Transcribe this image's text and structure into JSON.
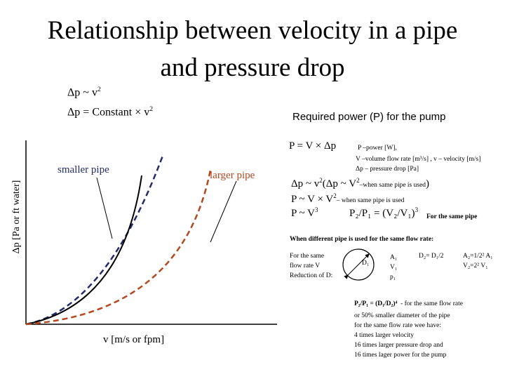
{
  "title": {
    "line1": "Relationship between velocity in a pipe",
    "line2": "and pressure drop"
  },
  "formulas": {
    "prop": "Δp ~ v",
    "prop_exp": "2",
    "const": "Δp = Constant × v",
    "const_exp": "2"
  },
  "power": {
    "heading": "Required power (P) for the pump",
    "eq": "P = V × Δp",
    "def_p": "P –power [W],",
    "def_v": "V –volume flow rate [m³/s] ,   v – velocity [m/s]",
    "def_dp": "Δp – pressure drop [Pa]",
    "rel1_main": "Δp ~ v",
    "rel1_exp": "2",
    "rel1_paren": "(Δp ~ V",
    "rel1_paren_exp": "2",
    "rel1_note": "–when same pipe is used",
    "rel1_close": ")",
    "rel2_main": "P ~ V × V",
    "rel2_exp": "2",
    "rel2_note": "– when same pipe is used",
    "rel3_main": "P ~ V",
    "rel3_exp": "3",
    "rel3_ratio": "P₂/P₁ = (V₂/V₁)",
    "rel3_ratio_exp": "3",
    "rel3_note": "For the same pipe"
  },
  "different_pipe": {
    "heading": "When different pipe is used for the same flow rate:",
    "left1": "For the same",
    "left2": "flow rate V",
    "left3": "Reduction of D:",
    "circle_label": "D₁",
    "a1": "A₁",
    "v1": "V₁",
    "p1": "p₁",
    "d2": "D₂= D₁/2",
    "a2": "A₂=1/2² A₁",
    "v2": "V₂=2² V₁",
    "ratio": "P₂/P₁ = (D₁/D₂)⁴",
    "ratio_note": "- for the same flow rate",
    "notes": [
      "or 50% smaller diameter of the pipe",
      "for the same flow rate wee have:",
      "4 times larger velocity",
      "16 times larger pressure drop and",
      "16 times lager power for the pump"
    ]
  },
  "chart": {
    "ylabel": "Δp  [Pa or ft water]",
    "xlabel": "v [m/s or fpm]",
    "label_smaller": "smaller pipe",
    "label_larger": "larger pipe"
  }
}
